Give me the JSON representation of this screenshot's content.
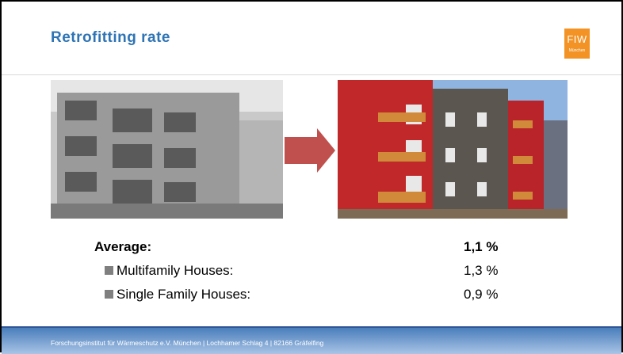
{
  "header": {
    "title": "Retrofitting rate"
  },
  "logo": {
    "name": "FIW",
    "subtitle": "München"
  },
  "rows": [
    {
      "label": "Average:",
      "value": "1,1 %"
    },
    {
      "label": "Multifamily Houses:",
      "value": "1,3 %"
    },
    {
      "label": "Single Family Houses:",
      "value": "0,9 %"
    }
  ],
  "footer": {
    "text": "Forschungsinstitut für Wärmeschutz e.V. München | Lochhamer Schlag 4 | 82166 Gräfelfing"
  }
}
